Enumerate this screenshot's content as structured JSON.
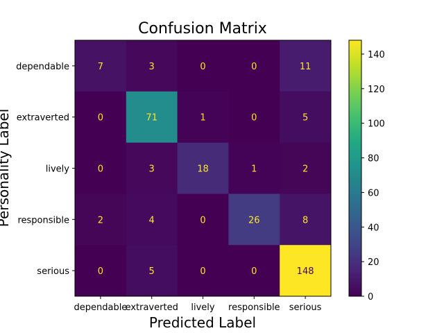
{
  "chart_data": {
    "type": "heatmap",
    "title": "Confusion Matrix",
    "xlabel": "Predicted Label",
    "ylabel": "Personality Label",
    "x_categories": [
      "dependable",
      "extraverted",
      "lively",
      "responsible",
      "serious"
    ],
    "y_categories": [
      "dependable",
      "extraverted",
      "lively",
      "responsible",
      "serious"
    ],
    "values": [
      [
        7,
        3,
        0,
        0,
        11
      ],
      [
        0,
        71,
        1,
        0,
        5
      ],
      [
        0,
        3,
        18,
        1,
        2
      ],
      [
        2,
        4,
        0,
        26,
        8
      ],
      [
        0,
        5,
        0,
        0,
        148
      ]
    ],
    "colormap": "viridis",
    "colorbar_range": [
      0,
      148
    ],
    "colorbar_ticks": [
      0,
      20,
      40,
      60,
      80,
      100,
      120,
      140
    ],
    "text_color_light": "#fde725",
    "text_color_dark": "#440154"
  }
}
